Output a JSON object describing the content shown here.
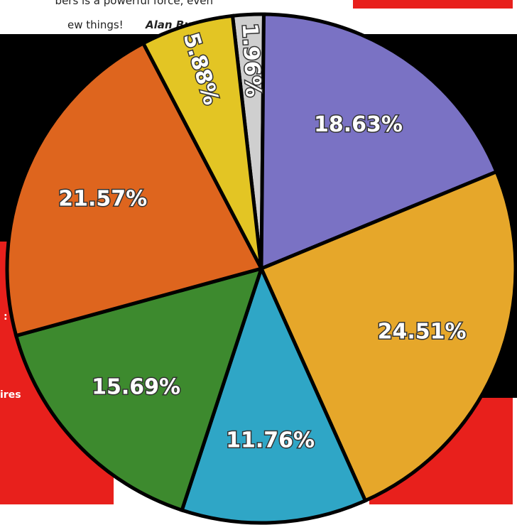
{
  "page": {
    "caption_line_1": "bers is a powerful force, even",
    "caption_line_2": "ew things!",
    "author": "Alan Buxey",
    "side_text_1": ":",
    "side_text_2": "ires"
  },
  "chart_data": {
    "type": "pie",
    "values": [
      1.96,
      18.63,
      24.51,
      11.76,
      15.69,
      21.57,
      5.88
    ],
    "value_labels": [
      "1.96%",
      "18.63%",
      "24.51%",
      "11.76%",
      "15.69%",
      "21.57%",
      "5.88%"
    ],
    "colors": [
      "#cfcfcf",
      "#7a72c4",
      "#e6a72a",
      "#2fa6c6",
      "#3d8a2e",
      "#de651e",
      "#e3c524"
    ]
  }
}
